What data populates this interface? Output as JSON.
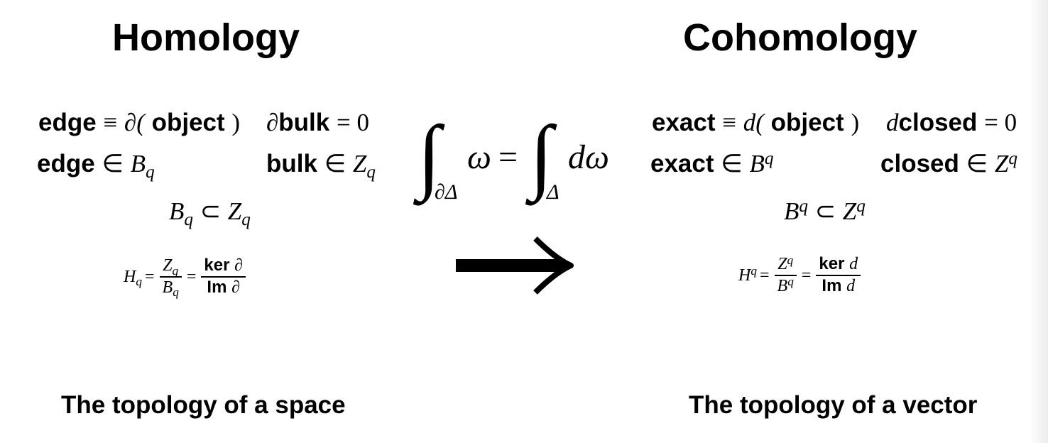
{
  "homology": {
    "title": "Homology",
    "edge_def": {
      "lhs": "edge",
      "op": "≡",
      "fn": "∂(",
      "arg": "object",
      "close": ")"
    },
    "bulk_closed": {
      "pre": "∂",
      "word": "bulk",
      "eq": "= 0"
    },
    "edge_in": {
      "word": "edge",
      "op": "∈",
      "set": "B",
      "sub": "q"
    },
    "bulk_in": {
      "word": "bulk",
      "op": "∈",
      "set": "Z",
      "sub": "q"
    },
    "subset": {
      "a": "B",
      "a_sub": "q",
      "op": "⊂",
      "b": "Z",
      "b_sub": "q"
    },
    "quotient": {
      "lhs": "H",
      "lhs_sub": "q",
      "eq1": "=",
      "num": "Z",
      "num_sub": "q",
      "den": "B",
      "den_sub": "q",
      "eq2": "=",
      "num2_word": "ker",
      "num2_sym": "∂",
      "den2_word": "Im",
      "den2_sym": "∂"
    },
    "caption": "The topology of a space"
  },
  "stokes": {
    "int_sym": "∫",
    "lower_left": "∂Δ",
    "omega": "ω",
    "eq": "=",
    "lower_right": "Δ",
    "d_omega": "dω"
  },
  "cohomology": {
    "title": "Cohomology",
    "exact_def": {
      "lhs": "exact",
      "op": "≡",
      "fn": "d(",
      "arg": "object",
      "close": ")"
    },
    "closed_zero": {
      "pre": "d",
      "word": "closed",
      "eq": "= 0"
    },
    "exact_in": {
      "word": "exact",
      "op": "∈",
      "set": "B",
      "sup": "q"
    },
    "closed_in": {
      "word": "closed",
      "op": "∈",
      "set": "Z",
      "sup": "q"
    },
    "subset": {
      "a": "B",
      "a_sup": "q",
      "op": "⊂",
      "b": "Z",
      "b_sup": "q"
    },
    "quotient": {
      "lhs": "H",
      "lhs_sup": "q",
      "eq1": "=",
      "num": "Z",
      "num_sup": "q",
      "den": "B",
      "den_sup": "q",
      "eq2": "=",
      "num2_word": "ker",
      "num2_sym": "d",
      "den2_word": "Im",
      "den2_sym": "d"
    },
    "caption": "The topology of a vector"
  },
  "arrow_icon": "right-arrow-icon"
}
